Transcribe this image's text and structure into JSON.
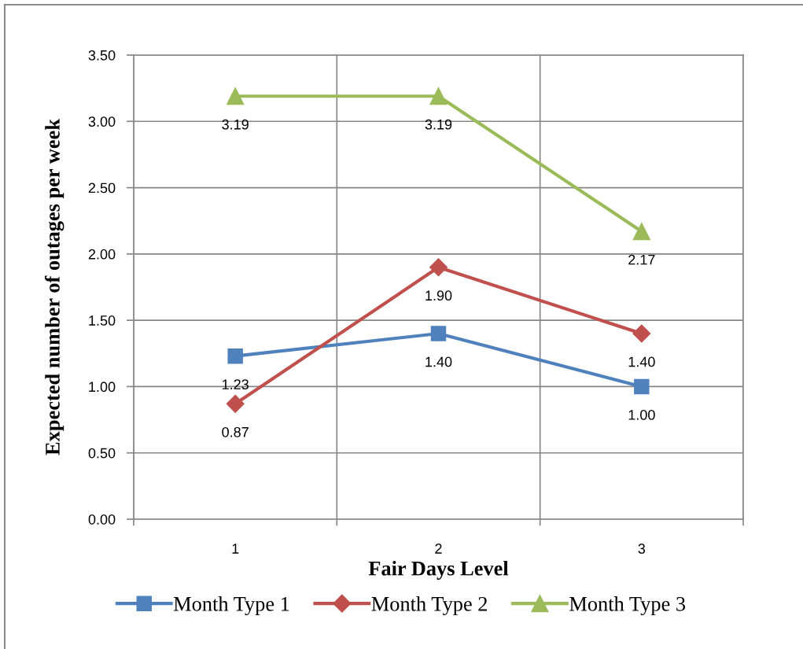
{
  "chart_data": {
    "type": "line",
    "xlabel": "Fair Days Level",
    "ylabel": "Expected number of outages per week",
    "categories": [
      "1",
      "2",
      "3"
    ],
    "ylim": [
      0,
      3.5
    ],
    "yticks": [
      {
        "value": 0,
        "label": "0.00"
      },
      {
        "value": 0.5,
        "label": "0.50"
      },
      {
        "value": 1,
        "label": "1.00"
      },
      {
        "value": 1.5,
        "label": "1.50"
      },
      {
        "value": 2,
        "label": "2.00"
      },
      {
        "value": 2.5,
        "label": "2.50"
      },
      {
        "value": 3,
        "label": "3.00"
      },
      {
        "value": 3.5,
        "label": "3.50"
      }
    ],
    "grid": true,
    "legend": "bottom",
    "line_style": "solid",
    "series": [
      {
        "name": "Month Type 1",
        "color": "#4f81bd",
        "marker": "square",
        "values": [
          1.23,
          1.4,
          1.0
        ],
        "value_labels": [
          "1.23",
          "1.40",
          "1.00"
        ]
      },
      {
        "name": "Month Type 2",
        "color": "#c0504d",
        "marker": "diamond",
        "values": [
          0.87,
          1.9,
          1.4
        ],
        "value_labels": [
          "0.87",
          "1.90",
          "1.40"
        ]
      },
      {
        "name": "Month Type 3",
        "color": "#9bbb59",
        "marker": "triangle",
        "values": [
          3.19,
          3.19,
          2.17
        ],
        "value_labels": [
          "3.19",
          "3.19",
          "2.17"
        ]
      }
    ]
  }
}
